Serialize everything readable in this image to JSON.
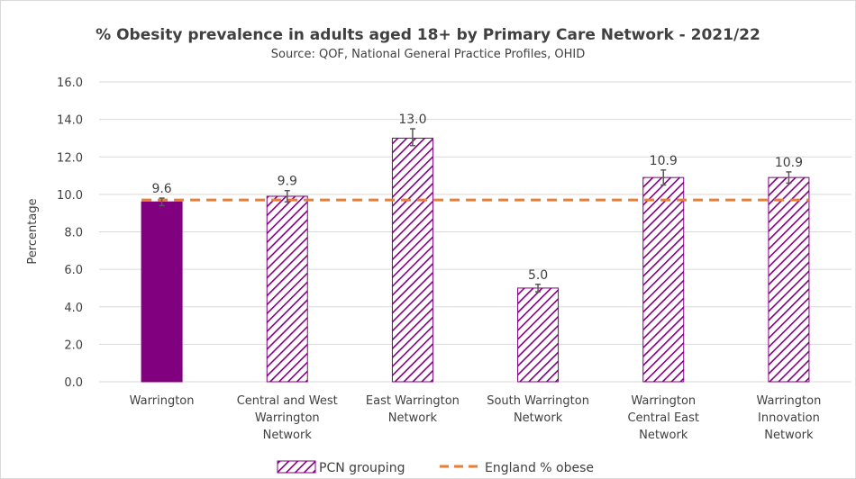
{
  "chart_data": {
    "type": "bar",
    "title": "% Obesity prevalence in adults aged 18+ by Primary Care Network - 2021/22",
    "subtitle": "Source: QOF, National General Practice Profiles, OHID",
    "ylabel": "Percentage",
    "xlabel": "",
    "ylim": [
      0,
      16
    ],
    "yticks": [
      "0.0",
      "2.0",
      "4.0",
      "6.0",
      "8.0",
      "10.0",
      "12.0",
      "14.0",
      "16.0"
    ],
    "grid": true,
    "categories": [
      [
        "Warrington"
      ],
      [
        "Central and West",
        "Warrington",
        "Network"
      ],
      [
        "East Warrington",
        "Network"
      ],
      [
        "South Warrington",
        "Network"
      ],
      [
        "Warrington",
        "Central East",
        "Network"
      ],
      [
        "Warrington",
        "Innovation",
        "Network"
      ]
    ],
    "values": [
      9.6,
      9.9,
      13.0,
      5.0,
      10.9,
      10.9
    ],
    "data_labels": [
      "9.6",
      "9.9",
      "13.0",
      "5.0",
      "10.9",
      "10.9"
    ],
    "error_bars": [
      [
        9.4,
        9.8
      ],
      [
        9.6,
        10.2
      ],
      [
        12.6,
        13.5
      ],
      [
        4.8,
        5.2
      ],
      [
        10.5,
        11.3
      ],
      [
        10.6,
        11.2
      ]
    ],
    "bar_styles": [
      "solid",
      "hatched",
      "hatched",
      "hatched",
      "hatched",
      "hatched"
    ],
    "reference_line": {
      "name": "England % obese",
      "value": 9.7,
      "color": "#ed7d31"
    },
    "legend": {
      "position": "bottom",
      "entries": [
        "PCN grouping",
        "England % obese"
      ]
    },
    "colors": {
      "bar_solid": "#800080",
      "hatch": "#800080",
      "gridline": "#d9d9d9",
      "error_bar": "#595959"
    }
  }
}
